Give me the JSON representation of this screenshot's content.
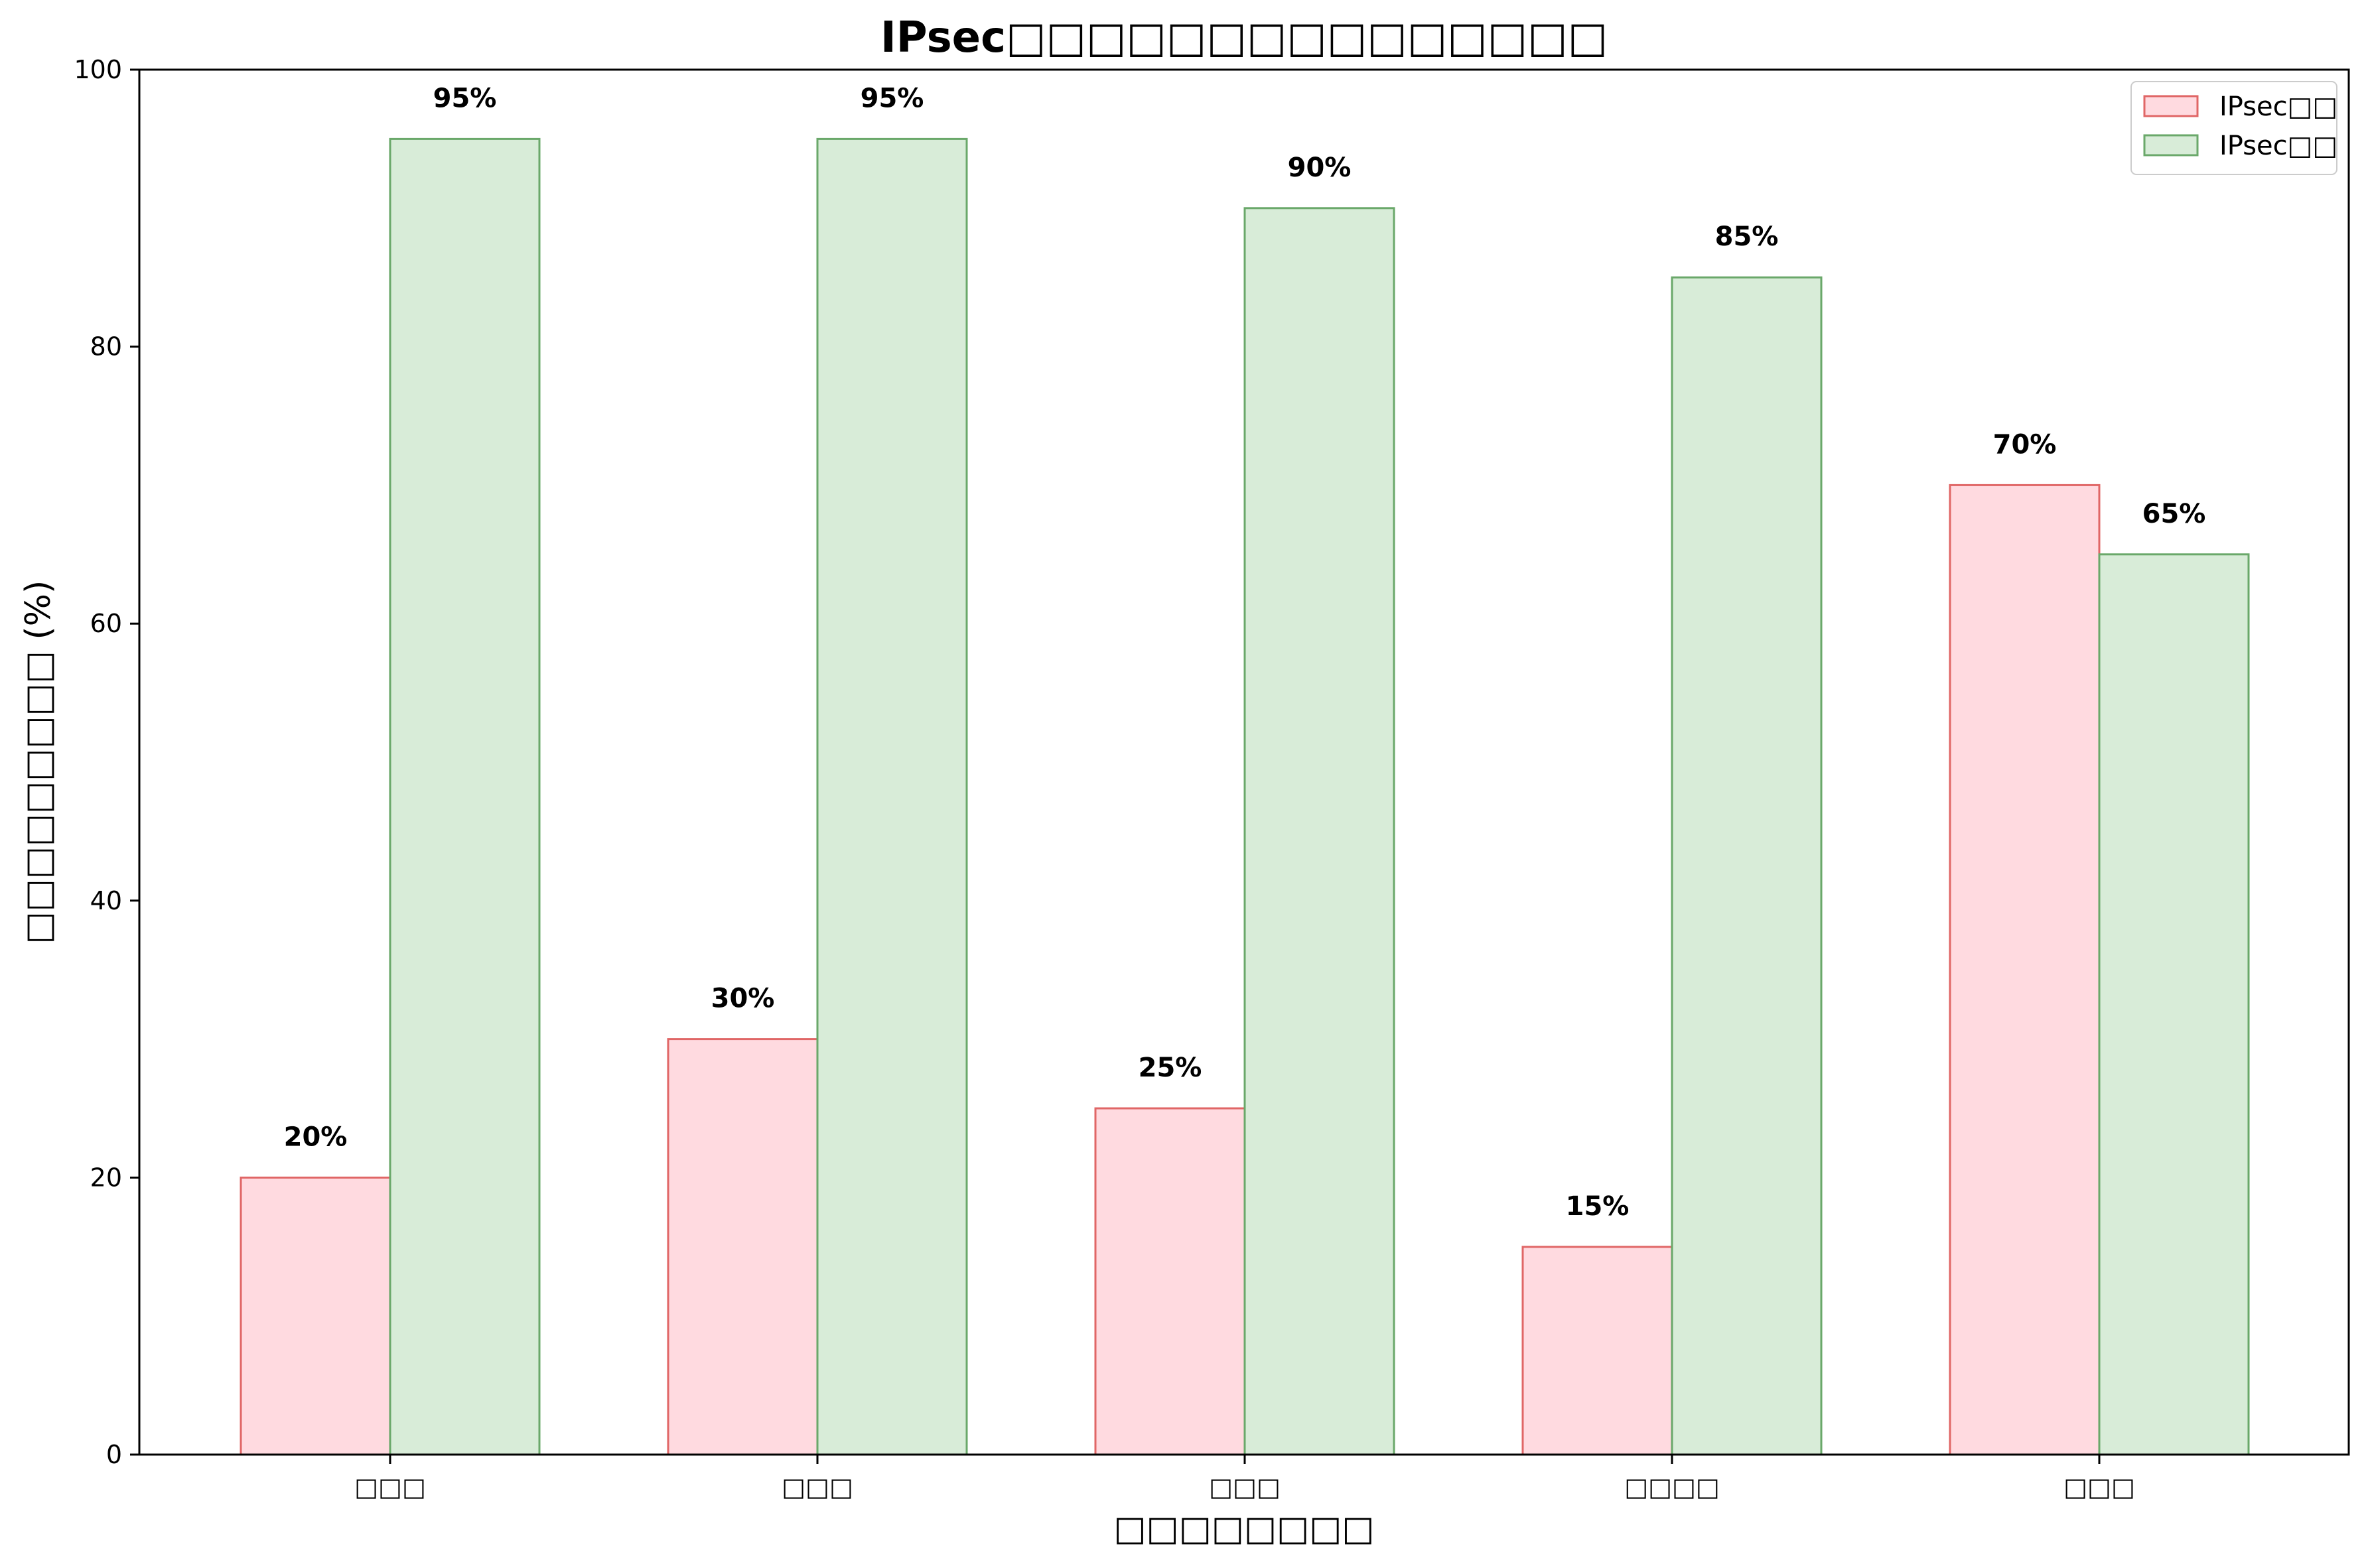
{
  "chart_data": {
    "type": "bar",
    "title": "IPsec□□□□□□□□□□□□□□□",
    "xlabel": "□□□□□□□□",
    "ylabel": "□□□□□□□□□ (%)",
    "categories": [
      "□□□",
      "□□□",
      "□□□",
      "□□□□",
      "□□□"
    ],
    "series": [
      {
        "name": "IPsec□□",
        "values": [
          20,
          30,
          25,
          15,
          70
        ],
        "fill": "#ffdae0",
        "stroke": "#e06666"
      },
      {
        "name": "IPsec□□",
        "values": [
          95,
          95,
          90,
          85,
          65
        ],
        "fill": "#d8ecd8",
        "stroke": "#6aa86a"
      }
    ],
    "data_label_suffix": "%",
    "ylim": [
      0,
      100
    ],
    "yticks": [
      0,
      20,
      40,
      60,
      80,
      100
    ],
    "grid": false,
    "legend_position": "top-right"
  }
}
